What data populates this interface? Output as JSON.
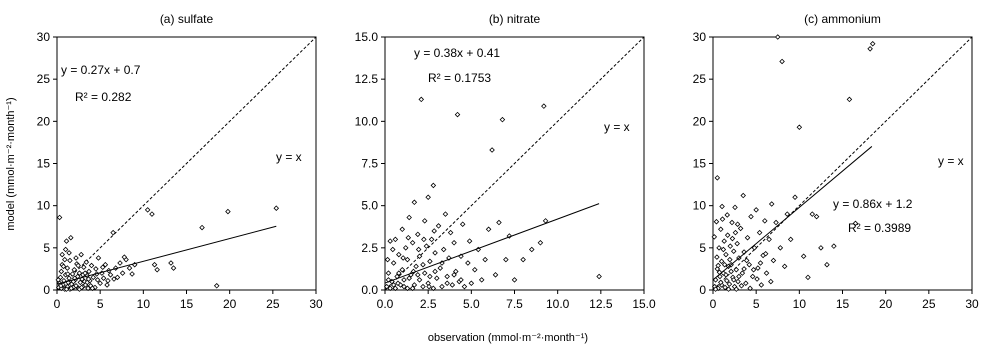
{
  "figure": {
    "y_axis_label": "model (mmol·m⁻²·month⁻¹)",
    "x_axis_label": "observation (mmol·m⁻²·month⁻¹)"
  },
  "chart_data": [
    {
      "type": "scatter",
      "title": "(a) sulfate",
      "xlabel": "observation (mmol·m⁻²·month⁻¹)",
      "ylabel": "model (mmol·m⁻²·month⁻¹)",
      "xlim": [
        0,
        30
      ],
      "ylim": [
        0,
        30
      ],
      "xticks": [
        "0",
        "5",
        "10",
        "15",
        "20",
        "25",
        "30"
      ],
      "yticks": [
        "0",
        "5",
        "10",
        "15",
        "20",
        "25",
        "30"
      ],
      "grid": false,
      "marker": "diamond-open",
      "fit": {
        "slope": 0.27,
        "intercept": 0.7,
        "x_range": [
          0,
          25.4
        ]
      },
      "equation": "y = 0.27x + 0.7",
      "r2": "R² = 0.282",
      "identity_label": "y = x",
      "points": [
        [
          0.2,
          0.3
        ],
        [
          0.3,
          0.8
        ],
        [
          0.4,
          1.5
        ],
        [
          0.5,
          0.2
        ],
        [
          0.5,
          2.2
        ],
        [
          0.6,
          3.0
        ],
        [
          0.7,
          0.6
        ],
        [
          0.8,
          1.1
        ],
        [
          0.9,
          0.1
        ],
        [
          1.0,
          1.8
        ],
        [
          1.0,
          4.8
        ],
        [
          1.1,
          5.8
        ],
        [
          1.2,
          0.4
        ],
        [
          1.2,
          2.6
        ],
        [
          1.3,
          0.9
        ],
        [
          1.4,
          1.4
        ],
        [
          1.5,
          0.1
        ],
        [
          1.5,
          3.5
        ],
        [
          1.6,
          6.2
        ],
        [
          1.7,
          0.7
        ],
        [
          1.8,
          1.9
        ],
        [
          1.9,
          0.3
        ],
        [
          2.0,
          2.4
        ],
        [
          2.1,
          1.2
        ],
        [
          2.2,
          0.5
        ],
        [
          2.3,
          3.1
        ],
        [
          2.4,
          1.6
        ],
        [
          2.5,
          0.2
        ],
        [
          2.6,
          2.0
        ],
        [
          2.7,
          0.9
        ],
        [
          2.8,
          4.2
        ],
        [
          2.9,
          1.3
        ],
        [
          3.0,
          0.4
        ],
        [
          3.1,
          2.7
        ],
        [
          3.2,
          1.0
        ],
        [
          3.3,
          0.6
        ],
        [
          3.4,
          3.3
        ],
        [
          3.5,
          1.7
        ],
        [
          3.6,
          0.2
        ],
        [
          3.7,
          2.2
        ],
        [
          3.8,
          1.1
        ],
        [
          3.9,
          0.5
        ],
        [
          4.0,
          2.9
        ],
        [
          4.2,
          1.5
        ],
        [
          4.4,
          0.3
        ],
        [
          4.5,
          2.5
        ],
        [
          4.7,
          1.2
        ],
        [
          4.8,
          3.8
        ],
        [
          5.0,
          0.8
        ],
        [
          5.2,
          2.0
        ],
        [
          5.4,
          1.4
        ],
        [
          5.6,
          3.0
        ],
        [
          5.8,
          0.6
        ],
        [
          6.0,
          2.3
        ],
        [
          6.2,
          1.8
        ],
        [
          6.5,
          6.8
        ],
        [
          6.8,
          2.6
        ],
        [
          7.0,
          1.5
        ],
        [
          7.3,
          3.2
        ],
        [
          7.6,
          2.0
        ],
        [
          8.0,
          3.6
        ],
        [
          8.4,
          2.6
        ],
        [
          9.0,
          3.0
        ],
        [
          10.5,
          9.5
        ],
        [
          11.0,
          9.0
        ],
        [
          11.3,
          3.0
        ],
        [
          11.6,
          2.4
        ],
        [
          13.2,
          3.2
        ],
        [
          13.5,
          2.6
        ],
        [
          16.8,
          7.4
        ],
        [
          18.5,
          0.5
        ],
        [
          19.8,
          9.3
        ],
        [
          25.4,
          9.7
        ],
        [
          0.3,
          8.6
        ],
        [
          0.6,
          4.2
        ],
        [
          0.9,
          3.6
        ],
        [
          1.1,
          0.1
        ],
        [
          1.4,
          4.4
        ],
        [
          1.9,
          1.0
        ],
        [
          2.2,
          3.8
        ],
        [
          2.6,
          0.1
        ],
        [
          3.0,
          1.8
        ],
        [
          3.5,
          0.9
        ],
        [
          4.1,
          0.2
        ],
        [
          4.6,
          1.9
        ],
        [
          5.3,
          2.7
        ],
        [
          5.9,
          1.1
        ],
        [
          6.6,
          1.3
        ],
        [
          7.8,
          3.9
        ],
        [
          8.7,
          1.9
        ],
        [
          0.15,
          1.2
        ],
        [
          0.45,
          0.5
        ],
        [
          0.75,
          2.8
        ],
        [
          1.25,
          1.9
        ],
        [
          1.65,
          0.2
        ],
        [
          2.05,
          1.4
        ],
        [
          2.45,
          2.9
        ],
        [
          2.85,
          0.3
        ],
        [
          3.25,
          2.0
        ],
        [
          3.65,
          1.3
        ]
      ]
    },
    {
      "type": "scatter",
      "title": "(b) nitrate",
      "xlabel": "observation (mmol·m⁻²·month⁻¹)",
      "ylabel": "",
      "xlim": [
        0,
        15
      ],
      "ylim": [
        0,
        15
      ],
      "xticks": [
        "0.0",
        "2.5",
        "5.0",
        "7.5",
        "10.0",
        "12.5",
        "15.0"
      ],
      "yticks": [
        "0.0",
        "2.5",
        "5.0",
        "7.5",
        "10.0",
        "12.5",
        "15.0"
      ],
      "grid": false,
      "marker": "diamond-open",
      "fit": {
        "slope": 0.38,
        "intercept": 0.41,
        "x_range": [
          0,
          12.4
        ]
      },
      "equation": "y = 0.38x + 0.41",
      "r2": "R² = 0.1753",
      "identity_label": "y = x",
      "points": [
        [
          0.1,
          0.2
        ],
        [
          0.2,
          1.0
        ],
        [
          0.3,
          0.1
        ],
        [
          0.3,
          2.9
        ],
        [
          0.4,
          0.5
        ],
        [
          0.5,
          1.6
        ],
        [
          0.6,
          0.1
        ],
        [
          0.6,
          3.0
        ],
        [
          0.7,
          0.8
        ],
        [
          0.8,
          2.1
        ],
        [
          0.9,
          0.3
        ],
        [
          1.0,
          1.2
        ],
        [
          1.0,
          3.6
        ],
        [
          1.1,
          0.6
        ],
        [
          1.2,
          2.5
        ],
        [
          1.3,
          0.1
        ],
        [
          1.3,
          1.8
        ],
        [
          1.4,
          4.3
        ],
        [
          1.5,
          0.9
        ],
        [
          1.6,
          2.8
        ],
        [
          1.7,
          0.3
        ],
        [
          1.7,
          5.2
        ],
        [
          1.8,
          1.4
        ],
        [
          1.9,
          3.3
        ],
        [
          2.0,
          0.6
        ],
        [
          2.0,
          2.0
        ],
        [
          2.1,
          11.3
        ],
        [
          2.2,
          0.2
        ],
        [
          2.3,
          4.1
        ],
        [
          2.3,
          1.0
        ],
        [
          2.4,
          2.6
        ],
        [
          2.5,
          0.4
        ],
        [
          2.5,
          5.5
        ],
        [
          2.6,
          1.7
        ],
        [
          2.7,
          3.0
        ],
        [
          2.8,
          0.1
        ],
        [
          2.8,
          6.2
        ],
        [
          2.9,
          2.2
        ],
        [
          3.0,
          0.7
        ],
        [
          3.1,
          3.8
        ],
        [
          3.2,
          1.3
        ],
        [
          3.3,
          0.2
        ],
        [
          3.4,
          2.4
        ],
        [
          3.5,
          4.5
        ],
        [
          3.6,
          0.8
        ],
        [
          3.7,
          1.9
        ],
        [
          3.8,
          3.4
        ],
        [
          3.9,
          0.3
        ],
        [
          4.0,
          2.8
        ],
        [
          4.1,
          1.1
        ],
        [
          4.2,
          10.4
        ],
        [
          4.3,
          0.5
        ],
        [
          4.4,
          2.0
        ],
        [
          4.5,
          3.9
        ],
        [
          4.6,
          0.2
        ],
        [
          4.8,
          1.6
        ],
        [
          4.9,
          2.9
        ],
        [
          5.0,
          0.4
        ],
        [
          5.2,
          1.2
        ],
        [
          5.4,
          2.4
        ],
        [
          5.6,
          0.6
        ],
        [
          5.8,
          1.8
        ],
        [
          6.0,
          3.6
        ],
        [
          6.2,
          8.3
        ],
        [
          6.4,
          0.9
        ],
        [
          6.6,
          4.0
        ],
        [
          6.8,
          10.1
        ],
        [
          7.0,
          1.8
        ],
        [
          7.2,
          3.2
        ],
        [
          7.5,
          0.6
        ],
        [
          8.0,
          1.8
        ],
        [
          8.5,
          2.4
        ],
        [
          9.0,
          2.8
        ],
        [
          9.2,
          10.9
        ],
        [
          9.3,
          4.1
        ],
        [
          12.4,
          0.8
        ],
        [
          0.2,
          0.6
        ],
        [
          0.5,
          0.3
        ],
        [
          0.8,
          1.0
        ],
        [
          1.1,
          0.2
        ],
        [
          1.4,
          0.7
        ],
        [
          1.6,
          0.1
        ],
        [
          1.9,
          0.9
        ],
        [
          2.2,
          1.5
        ],
        [
          2.6,
          0.8
        ],
        [
          2.9,
          1.1
        ],
        [
          3.3,
          1.6
        ],
        [
          3.6,
          0.4
        ],
        [
          4.0,
          0.9
        ],
        [
          4.4,
          0.6
        ],
        [
          0.15,
          1.8
        ],
        [
          0.45,
          2.4
        ],
        [
          0.75,
          0.4
        ],
        [
          1.05,
          1.9
        ],
        [
          1.35,
          3.1
        ],
        [
          1.65,
          1.1
        ],
        [
          1.95,
          2.4
        ],
        [
          2.25,
          3.0
        ],
        [
          2.55,
          0.2
        ],
        [
          2.85,
          3.5
        ]
      ]
    },
    {
      "type": "scatter",
      "title": "(c) ammonium",
      "xlabel": "observation (mmol·m⁻²·month⁻¹)",
      "ylabel": "",
      "xlim": [
        0,
        30
      ],
      "ylim": [
        0,
        30
      ],
      "xticks": [
        "0",
        "5",
        "10",
        "15",
        "20",
        "25",
        "30"
      ],
      "yticks": [
        "0",
        "5",
        "10",
        "15",
        "20",
        "25",
        "30"
      ],
      "grid": false,
      "marker": "diamond-open",
      "fit": {
        "slope": 0.86,
        "intercept": 1.2,
        "x_range": [
          0,
          18.4
        ]
      },
      "equation": "y = 0.86x + 1.2",
      "r2": "R² = 0.3989",
      "identity_label": "y = x",
      "points": [
        [
          0.2,
          0.4
        ],
        [
          0.3,
          1.2
        ],
        [
          0.4,
          8.1
        ],
        [
          0.5,
          13.3
        ],
        [
          0.5,
          2.5
        ],
        [
          0.6,
          0.2
        ],
        [
          0.7,
          5.0
        ],
        [
          0.8,
          1.6
        ],
        [
          0.9,
          7.2
        ],
        [
          1.0,
          0.6
        ],
        [
          1.0,
          3.4
        ],
        [
          1.1,
          8.4
        ],
        [
          1.2,
          2.0
        ],
        [
          1.3,
          5.8
        ],
        [
          1.4,
          0.3
        ],
        [
          1.5,
          4.2
        ],
        [
          1.6,
          1.1
        ],
        [
          1.7,
          6.5
        ],
        [
          1.8,
          2.8
        ],
        [
          1.9,
          0.7
        ],
        [
          2.0,
          5.2
        ],
        [
          2.1,
          3.0
        ],
        [
          2.2,
          8.0
        ],
        [
          2.3,
          1.5
        ],
        [
          2.4,
          4.6
        ],
        [
          2.5,
          0.4
        ],
        [
          2.6,
          6.8
        ],
        [
          2.7,
          2.4
        ],
        [
          2.8,
          5.5
        ],
        [
          2.9,
          1.0
        ],
        [
          3.0,
          3.8
        ],
        [
          3.2,
          7.3
        ],
        [
          3.4,
          2.0
        ],
        [
          3.5,
          11.2
        ],
        [
          3.6,
          4.5
        ],
        [
          3.8,
          0.8
        ],
        [
          4.0,
          6.2
        ],
        [
          4.2,
          3.0
        ],
        [
          4.4,
          8.7
        ],
        [
          4.6,
          1.6
        ],
        [
          4.8,
          5.0
        ],
        [
          5.0,
          9.5
        ],
        [
          5.2,
          2.6
        ],
        [
          5.4,
          6.8
        ],
        [
          5.6,
          0.6
        ],
        [
          5.8,
          4.1
        ],
        [
          6.0,
          8.2
        ],
        [
          6.2,
          2.0
        ],
        [
          6.5,
          6.0
        ],
        [
          6.8,
          10.2
        ],
        [
          7.0,
          3.5
        ],
        [
          7.3,
          8.0
        ],
        [
          7.5,
          30.0
        ],
        [
          7.8,
          5.0
        ],
        [
          8.0,
          27.1
        ],
        [
          8.3,
          2.8
        ],
        [
          8.6,
          9.0
        ],
        [
          9.0,
          6.0
        ],
        [
          9.5,
          11.0
        ],
        [
          10.0,
          19.3
        ],
        [
          10.5,
          4.0
        ],
        [
          11.0,
          1.5
        ],
        [
          11.5,
          9.0
        ],
        [
          12.0,
          8.7
        ],
        [
          12.5,
          5.0
        ],
        [
          13.2,
          3.0
        ],
        [
          14.0,
          5.2
        ],
        [
          15.8,
          22.6
        ],
        [
          16.5,
          7.9
        ],
        [
          18.2,
          28.6
        ],
        [
          18.5,
          29.2
        ],
        [
          0.3,
          0.1
        ],
        [
          0.6,
          2.9
        ],
        [
          0.9,
          0.9
        ],
        [
          1.2,
          4.8
        ],
        [
          1.5,
          1.8
        ],
        [
          1.8,
          0.1
        ],
        [
          2.1,
          2.2
        ],
        [
          2.4,
          1.2
        ],
        [
          2.7,
          0.1
        ],
        [
          3.0,
          1.6
        ],
        [
          3.3,
          0.5
        ],
        [
          3.6,
          2.5
        ],
        [
          3.9,
          3.5
        ],
        [
          4.3,
          0.2
        ],
        [
          4.7,
          2.4
        ],
        [
          5.1,
          1.3
        ],
        [
          5.5,
          3.2
        ],
        [
          6.1,
          4.3
        ],
        [
          6.7,
          1.0
        ],
        [
          0.15,
          6.3
        ],
        [
          0.45,
          3.9
        ],
        [
          0.75,
          2.1
        ],
        [
          1.05,
          9.9
        ],
        [
          1.35,
          3.0
        ],
        [
          1.65,
          8.9
        ],
        [
          1.95,
          3.6
        ],
        [
          2.25,
          6.1
        ],
        [
          2.55,
          9.8
        ],
        [
          2.85,
          7.8
        ]
      ]
    }
  ]
}
